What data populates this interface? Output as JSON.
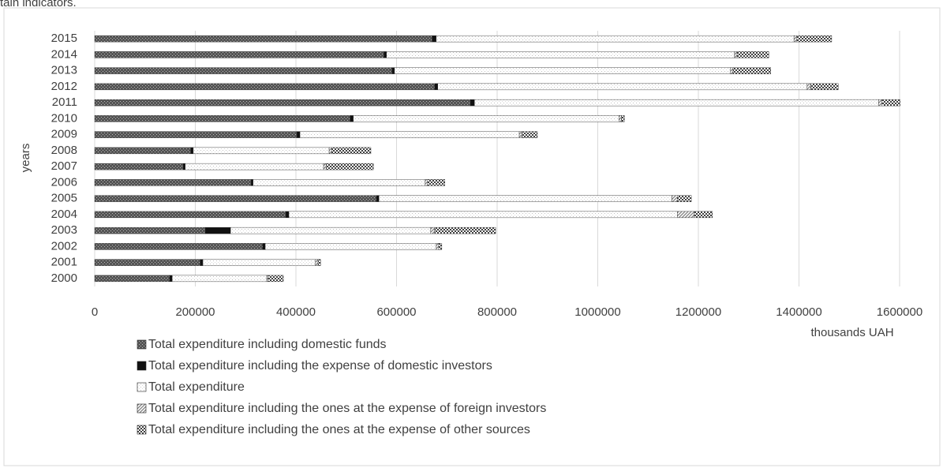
{
  "caption": "tain indicators.",
  "chart_data": {
    "type": "stacked-bar-horizontal",
    "x_label": "thousands UAH",
    "y_label": "years",
    "categories": [
      "2000",
      "2001",
      "2002",
      "2003",
      "2004",
      "2005",
      "2006",
      "2007",
      "2008",
      "2009",
      "2010",
      "2011",
      "2012",
      "2013",
      "2014",
      "2015"
    ],
    "series": [
      {
        "name": "Total expenditure including domestic funds",
        "color": "#555555",
        "values": [
          149000,
          210000,
          334000,
          220000,
          380000,
          560000,
          311000,
          176000,
          191000,
          402000,
          508000,
          747000,
          676000,
          591000,
          575000,
          671000
        ]
      },
      {
        "name": "Total expenditure including the expense of domestic investors",
        "color": "#111111",
        "values": [
          5000,
          5000,
          5000,
          50000,
          6000,
          5000,
          4000,
          4000,
          5000,
          6000,
          6000,
          8000,
          6000,
          5000,
          5000,
          8000
        ]
      },
      {
        "name": "Total expenditure",
        "color": "#d9d9d9",
        "values": [
          188000,
          224000,
          340000,
          398000,
          772000,
          582000,
          342000,
          275000,
          270000,
          436000,
          528000,
          803000,
          734000,
          668000,
          692000,
          711000
        ]
      },
      {
        "name": "Total expenditure including the ones at the expense of foreign investors",
        "color": "#7f7f7f",
        "values": [
          3000,
          5000,
          5000,
          8000,
          34000,
          11000,
          5000,
          5000,
          5000,
          5000,
          5000,
          7000,
          7000,
          5000,
          5000,
          6000
        ]
      },
      {
        "name": "Total expenditure including the ones at the expense of other sources",
        "color": "#404040",
        "values": [
          30000,
          5000,
          6000,
          121000,
          36000,
          28000,
          34000,
          94000,
          78000,
          31000,
          6000,
          36000,
          55000,
          75000,
          63000,
          69000
        ]
      }
    ],
    "xlim": [
      0,
      1600000
    ],
    "xticks": [
      0,
      200000,
      400000,
      600000,
      800000,
      1000000,
      1200000,
      1400000,
      1600000
    ],
    "grid": true
  }
}
